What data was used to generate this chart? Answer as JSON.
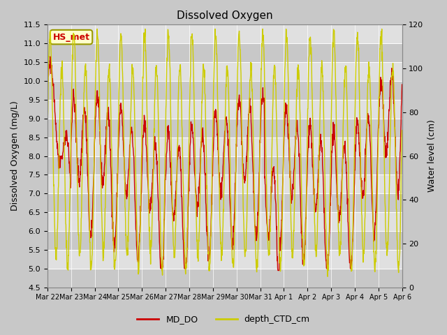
{
  "title": "Dissolved Oxygen",
  "ylabel_left": "Dissolved Oxygen (mg/L)",
  "ylabel_right": "Water level (cm)",
  "ylim_left": [
    4.5,
    11.5
  ],
  "ylim_right": [
    0,
    120
  ],
  "yticks_left": [
    4.5,
    5.0,
    5.5,
    6.0,
    6.5,
    7.0,
    7.5,
    8.0,
    8.5,
    9.0,
    9.5,
    10.0,
    10.5,
    11.0,
    11.5
  ],
  "yticks_right": [
    0,
    20,
    40,
    60,
    80,
    100,
    120
  ],
  "color_do": "#cc0000",
  "color_depth": "#cccc00",
  "legend_do": "MD_DO",
  "legend_depth": "depth_CTD_cm",
  "annotation_text": "HS_met",
  "annotation_color": "#cc0000",
  "annotation_bg": "#ffffcc",
  "annotation_border": "#999900",
  "tick_labels": [
    "Mar 22",
    "Mar 23",
    "Mar 24",
    "Mar 25",
    "Mar 26",
    "Mar 27",
    "Mar 28",
    "Mar 29",
    "Mar 30",
    "Mar 31",
    "Apr 1",
    "Apr 2",
    "Apr 3",
    "Apr 4",
    "Apr 5",
    "Apr 6"
  ],
  "tick_positions": [
    0,
    1,
    2,
    3,
    4,
    5,
    6,
    7,
    8,
    9,
    10,
    11,
    12,
    13,
    14,
    15
  ]
}
